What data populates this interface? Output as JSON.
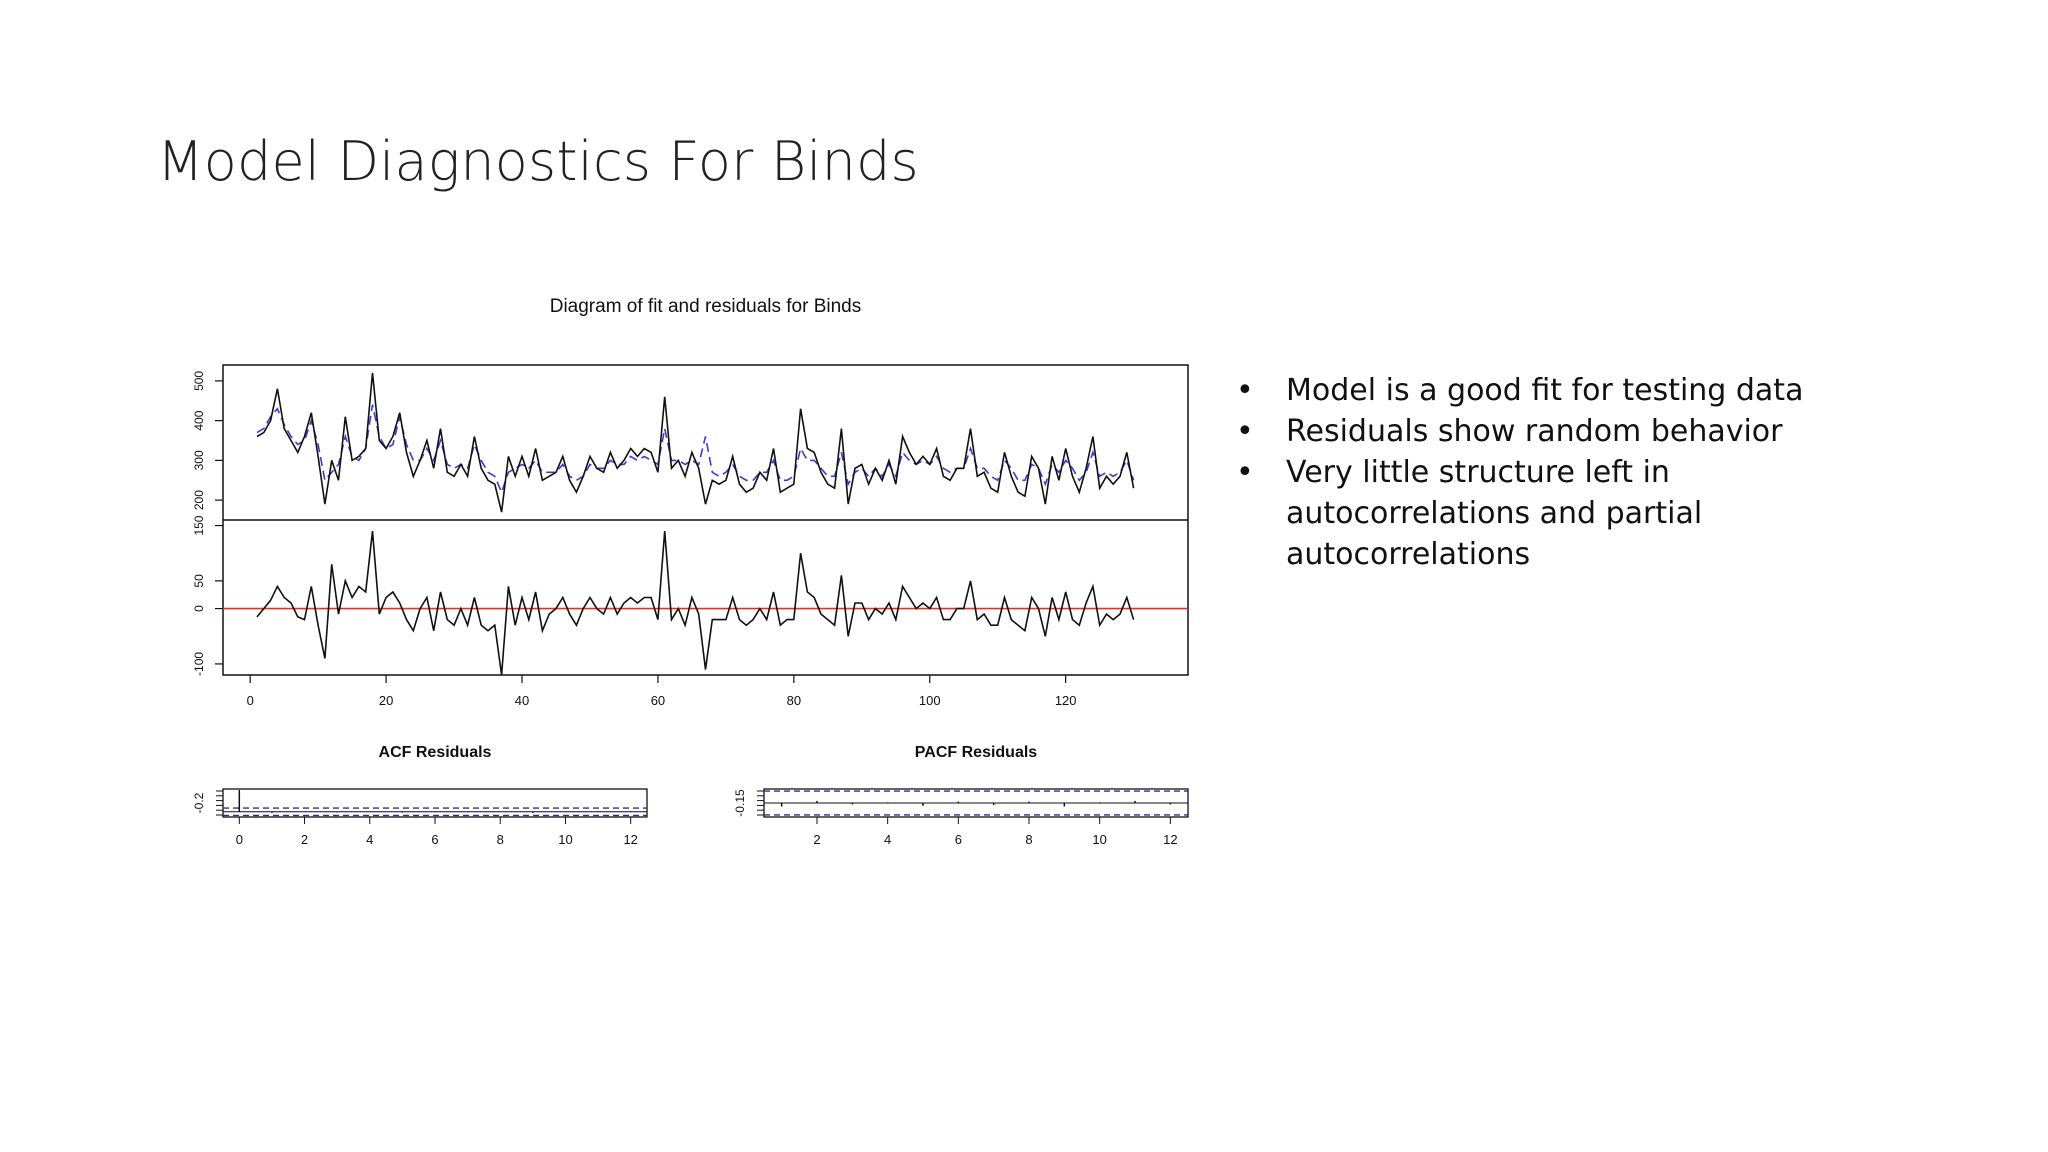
{
  "slide": {
    "title": "Model Diagnostics For Binds"
  },
  "bullets": [
    "Model is a good fit for testing data",
    "Residuals show random behavior",
    "Very little structure left in autocorrelations and partial autocorrelations"
  ],
  "chart_data": [
    {
      "type": "line",
      "title": "Diagram of fit and residuals for Binds",
      "xlabel": "",
      "ylabel": "",
      "xlim": [
        -4,
        138
      ],
      "ylim": [
        150,
        540
      ],
      "yticks": [
        200,
        300,
        400,
        500
      ],
      "yticklabels": [
        "200",
        "300",
        "400",
        "500"
      ],
      "grid": false,
      "colors": {
        "actual": "#111111",
        "fitted": "#3b3bcf"
      },
      "series": [
        {
          "values": [
            360,
            370,
            400,
            480,
            380,
            350,
            320,
            360,
            420,
            310,
            190,
            300,
            250,
            410,
            300,
            310,
            330,
            520,
            350,
            330,
            360,
            420,
            320,
            260,
            300,
            350,
            280,
            380,
            270,
            260,
            290,
            260,
            360,
            280,
            250,
            240,
            170,
            310,
            260,
            310,
            260,
            330,
            250,
            260,
            270,
            310,
            250,
            220,
            260,
            310,
            280,
            270,
            320,
            280,
            300,
            330,
            310,
            330,
            320,
            270,
            460,
            280,
            300,
            260,
            320,
            280,
            190,
            250,
            240,
            250,
            310,
            240,
            220,
            230,
            270,
            250,
            330,
            220,
            230,
            240,
            430,
            330,
            320,
            270,
            240,
            230,
            380,
            190,
            280,
            290,
            240,
            280,
            250,
            300,
            240,
            360,
            320,
            290,
            310,
            290,
            330,
            260,
            250,
            280,
            280,
            380,
            260,
            270,
            230,
            220,
            320,
            260,
            220,
            210,
            310,
            280,
            190,
            310,
            250,
            330,
            260,
            220,
            280,
            360,
            230,
            260,
            240,
            260,
            320,
            230
          ]
        },
        {
          "values": [
            370,
            380,
            410,
            430,
            390,
            360,
            340,
            350,
            400,
            340,
            250,
            270,
            290,
            360,
            310,
            300,
            330,
            440,
            360,
            330,
            340,
            410,
            340,
            300,
            300,
            330,
            300,
            350,
            290,
            280,
            290,
            280,
            340,
            300,
            270,
            260,
            220,
            270,
            280,
            290,
            280,
            300,
            270,
            270,
            270,
            290,
            260,
            250,
            260,
            290,
            280,
            280,
            300,
            290,
            290,
            310,
            300,
            310,
            300,
            290,
            380,
            300,
            300,
            290,
            300,
            290,
            360,
            270,
            260,
            270,
            290,
            260,
            250,
            250,
            270,
            270,
            300,
            250,
            250,
            260,
            330,
            300,
            300,
            280,
            260,
            260,
            320,
            240,
            270,
            280,
            260,
            280,
            260,
            290,
            260,
            320,
            300,
            290,
            300,
            290,
            310,
            280,
            270,
            280,
            280,
            330,
            280,
            280,
            260,
            250,
            300,
            280,
            250,
            250,
            290,
            280,
            240,
            290,
            270,
            300,
            280,
            250,
            270,
            320,
            260,
            270,
            260,
            270,
            300,
            250
          ]
        }
      ]
    },
    {
      "type": "line",
      "title": "",
      "xlabel": "",
      "ylabel": "",
      "xlim": [
        -4,
        138
      ],
      "ylim": [
        -120,
        160
      ],
      "yticks": [
        -100,
        0,
        50,
        150
      ],
      "yticklabels": [
        "-100",
        "0",
        "50",
        "150"
      ],
      "xticks": [
        0,
        20,
        40,
        60,
        80,
        100,
        120
      ],
      "xticklabels": [
        "0",
        "20",
        "40",
        "60",
        "80",
        "100",
        "120"
      ],
      "reference_line": 0,
      "grid": false,
      "colors": {
        "residual": "#111111",
        "zero_line": "#e0302a"
      },
      "series": [
        {
          "values": [
            -15,
            0,
            15,
            40,
            20,
            10,
            -15,
            -20,
            40,
            -30,
            -90,
            80,
            -10,
            50,
            20,
            40,
            30,
            140,
            -10,
            20,
            30,
            10,
            -20,
            -40,
            0,
            20,
            -40,
            30,
            -20,
            -30,
            0,
            -30,
            20,
            -30,
            -40,
            -30,
            -120,
            40,
            -30,
            20,
            -20,
            30,
            -40,
            -10,
            0,
            20,
            -10,
            -30,
            0,
            20,
            0,
            -10,
            20,
            -10,
            10,
            20,
            10,
            20,
            20,
            -20,
            140,
            -20,
            0,
            -30,
            20,
            -10,
            -110,
            -20,
            -20,
            -20,
            20,
            -20,
            -30,
            -20,
            0,
            -20,
            30,
            -30,
            -20,
            -20,
            100,
            30,
            20,
            -10,
            -20,
            -30,
            60,
            -50,
            10,
            10,
            -20,
            0,
            -10,
            10,
            -20,
            40,
            20,
            0,
            10,
            0,
            20,
            -20,
            -20,
            0,
            0,
            50,
            -20,
            -10,
            -30,
            -30,
            20,
            -20,
            -30,
            -40,
            20,
            0,
            -50,
            20,
            -20,
            30,
            -20,
            -30,
            10,
            40,
            -30,
            -10,
            -20,
            -10,
            20,
            -20
          ]
        }
      ]
    },
    {
      "type": "bar",
      "title": "ACF Residuals",
      "xlabel": "",
      "ylabel": "",
      "xlim": [
        -0.5,
        12.5
      ],
      "ylim": [
        -0.24,
        1.05
      ],
      "yticks": [
        -0.2
      ],
      "yticklabels": [
        "-0.2"
      ],
      "xticks": [
        0,
        2,
        4,
        6,
        8,
        10,
        12
      ],
      "xticklabels": [
        "0",
        "2",
        "4",
        "6",
        "8",
        "10",
        "12"
      ],
      "confidence_band": 0.17,
      "categories": [
        0,
        1,
        2,
        3,
        4,
        5,
        6,
        7,
        8,
        9,
        10,
        11,
        12
      ],
      "values": [
        1.0,
        -0.05,
        0.02,
        -0.03,
        0.01,
        -0.04,
        0.03,
        -0.02,
        0.02,
        -0.05,
        0.01,
        0.03,
        -0.02
      ],
      "grid": false,
      "colors": {
        "bars": "#111111",
        "band": "#2a2aa8"
      }
    },
    {
      "type": "bar",
      "title": "PACF Residuals",
      "xlabel": "",
      "ylabel": "",
      "xlim": [
        0.5,
        12.5
      ],
      "ylim": [
        -0.2,
        0.2
      ],
      "yticks": [
        -0.15
      ],
      "yticklabels": [
        "-0.15"
      ],
      "xticks": [
        2,
        4,
        6,
        8,
        10,
        12
      ],
      "xticklabels": [
        "2",
        "4",
        "6",
        "8",
        "10",
        "12"
      ],
      "confidence_band": 0.17,
      "categories": [
        1,
        2,
        3,
        4,
        5,
        6,
        7,
        8,
        9,
        10,
        11,
        12
      ],
      "values": [
        -0.05,
        0.03,
        -0.02,
        0.01,
        -0.04,
        0.02,
        -0.03,
        0.02,
        -0.05,
        0.01,
        0.03,
        -0.02
      ],
      "grid": false,
      "colors": {
        "bars": "#111111",
        "band": "#2a2aa8"
      }
    }
  ]
}
